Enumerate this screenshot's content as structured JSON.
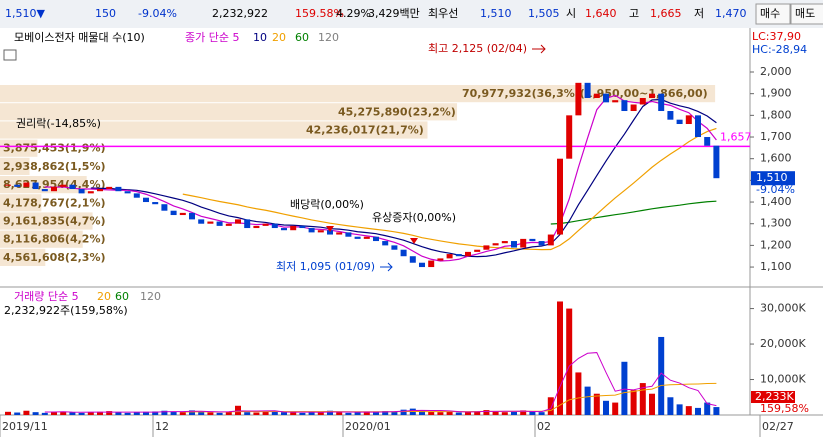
{
  "top_bar": {
    "items": [
      "1,510▼",
      "150",
      "-9.04%",
      "2,232,922",
      "159.58%",
      "4.29%",
      "3,429백만",
      "최우선",
      "1,510",
      "1,505",
      "시",
      "1,640",
      "고",
      "1,665",
      "저",
      "1,470",
      "매수",
      "매도"
    ]
  },
  "price_chart": {
    "legend": [
      "모베이스전자 매물대 수(10)",
      "종가 단순 5",
      "10",
      "20",
      "60",
      "120"
    ],
    "lc": "LC:37,90",
    "hc": "HC:-28,94",
    "ylim": [
      1008,
      2203
    ],
    "yticks": [
      {
        "value": 1100,
        "label": "1,100"
      },
      {
        "value": 1200,
        "label": "1,200"
      },
      {
        "value": 1300,
        "label": "1,300"
      },
      {
        "value": 1400,
        "label": "1,400"
      },
      {
        "value": 1500,
        "label": "1,500"
      },
      {
        "value": 1600,
        "label": "1,600"
      },
      {
        "value": 1700,
        "label": "1,700"
      },
      {
        "value": 1800,
        "label": "1,800"
      },
      {
        "value": 1900,
        "label": "1,900"
      },
      {
        "value": 2000,
        "label": "2,000"
      }
    ],
    "closes": [
      1480,
      1470,
      1490,
      1460,
      1450,
      1470,
      1480,
      1460,
      1440,
      1450,
      1460,
      1470,
      1450,
      1440,
      1420,
      1400,
      1390,
      1360,
      1340,
      1350,
      1320,
      1300,
      1310,
      1290,
      1300,
      1320,
      1280,
      1290,
      1300,
      1280,
      1270,
      1290,
      1280,
      1260,
      1270,
      1250,
      1260,
      1240,
      1230,
      1240,
      1220,
      1200,
      1180,
      1150,
      1120,
      1100,
      1130,
      1140,
      1160,
      1150,
      1170,
      1180,
      1200,
      1210,
      1220,
      1190,
      1230,
      1220,
      1200,
      1250,
      1600,
      1800,
      1950,
      1880,
      1900,
      1860,
      1870,
      1820,
      1850,
      1880,
      1900,
      1820,
      1780,
      1760,
      1800,
      1700,
      1660,
      1510
    ],
    "profile": {
      "values": [
        36.3,
        23.2,
        21.7,
        1.9,
        1.5,
        4.4,
        2.1,
        4.7,
        4.2,
        2.3
      ],
      "value_labels": [
        "70,977,932(36,3%)(1,950,00~1,866,00)",
        "45,275,890(23,2%)",
        "42,236,017(21,7%)",
        "3,875,453(1,9%)",
        "2,938,862(1,5%)",
        "8,627,954(4,4%)",
        "4,178,767(2,1%)",
        "9,161,835(4,7%)",
        "8,116,806(4,2%)",
        "4,561,608(2,3%)"
      ]
    },
    "line_level": {
      "value": 1657,
      "label": "1,657"
    },
    "current": {
      "value": 1510,
      "label": "1,510",
      "change": "-9.04%"
    },
    "annotations": {
      "high": "최고 2,125 (02/04)",
      "low": "최저 1,095 (01/09)",
      "rights": "권리락(-14,85%)",
      "dividend": "배당락(0,00%)",
      "rights_offering": "유상증자(0,00%)"
    }
  },
  "volume_chart": {
    "legend": [
      "거래량 단순 5",
      "20",
      "60",
      "120"
    ],
    "info": "2,232,922주(159,58%)",
    "ylim": [
      0,
      35800
    ],
    "yticks": [
      {
        "value": 10000,
        "label": "10,000K"
      },
      {
        "value": 20000,
        "label": "20,000K"
      },
      {
        "value": 30000,
        "label": "30,000K"
      }
    ],
    "values": [
      900,
      700,
      1200,
      800,
      600,
      900,
      1000,
      700,
      600,
      800,
      900,
      1100,
      700,
      600,
      800,
      900,
      1000,
      1200,
      900,
      800,
      1300,
      1000,
      700,
      600,
      900,
      2600,
      800,
      700,
      900,
      1000,
      800,
      700,
      600,
      900,
      800,
      1200,
      700,
      600,
      800,
      900,
      1000,
      1100,
      900,
      1500,
      1800,
      1300,
      900,
      800,
      1000,
      700,
      900,
      1100,
      1400,
      1000,
      800,
      900,
      1300,
      1000,
      800,
      5000,
      32000,
      30000,
      12000,
      8000,
      6000,
      4000,
      3500,
      15000,
      7000,
      9000,
      6000,
      22000,
      5000,
      3000,
      2500,
      2000,
      3500,
      2233
    ],
    "current_label": "2,233K",
    "current_pct": "159,58%"
  },
  "x_axis": {
    "labels": [
      "2019/11",
      "12",
      "2020/01",
      "02",
      "02/27"
    ]
  }
}
